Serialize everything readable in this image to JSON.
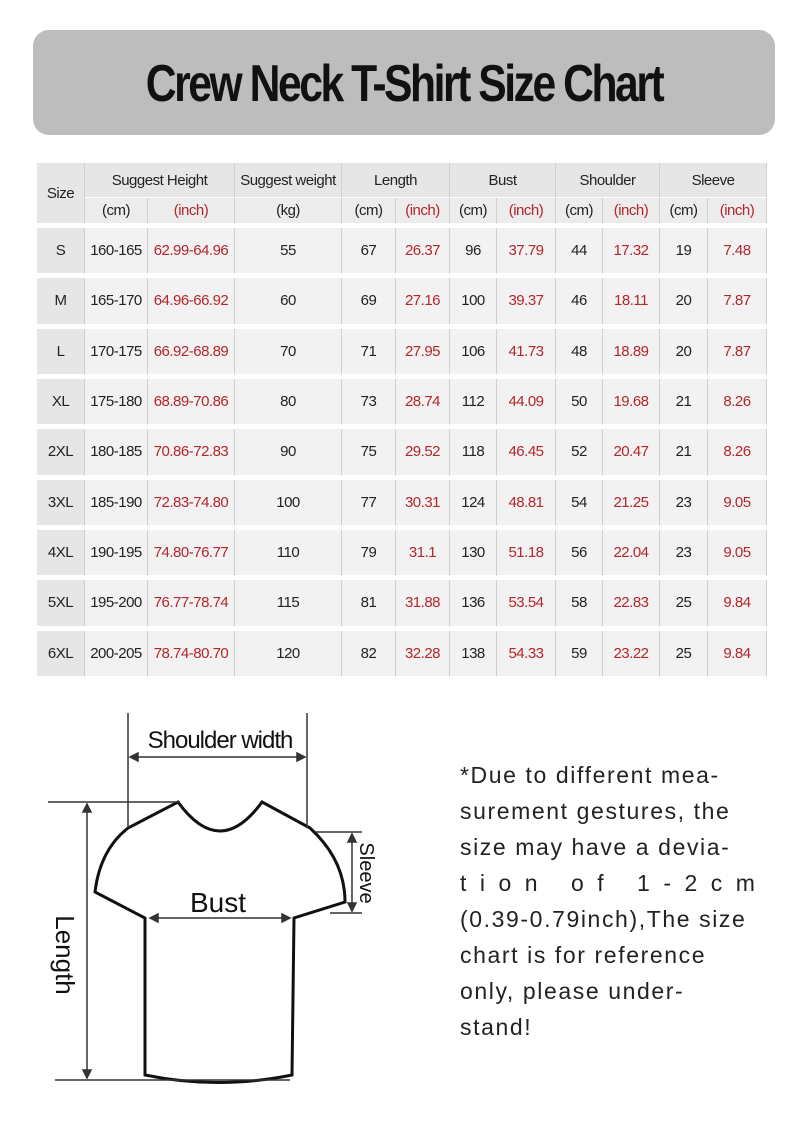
{
  "header": {
    "title": "Crew Neck T-Shirt Size Chart"
  },
  "table": {
    "headers": [
      "Size",
      "Suggest Height",
      "Suggest weight",
      "Length",
      "Bust",
      "Shoulder",
      "Sleeve"
    ],
    "subheaders": [
      "(cm)",
      "(inch)",
      "(kg)",
      "(cm)",
      "(inch)",
      "(cm)",
      "(inch)",
      "(cm)",
      "(inch)",
      "(cm)",
      "(inch)"
    ],
    "rows": [
      [
        "S",
        "160-165",
        "62.99-64.96",
        "55",
        "67",
        "26.37",
        "96",
        "37.79",
        "44",
        "17.32",
        "19",
        "7.48"
      ],
      [
        "M",
        "165-170",
        "64.96-66.92",
        "60",
        "69",
        "27.16",
        "100",
        "39.37",
        "46",
        "18.11",
        "20",
        "7.87"
      ],
      [
        "L",
        "170-175",
        "66.92-68.89",
        "70",
        "71",
        "27.95",
        "106",
        "41.73",
        "48",
        "18.89",
        "20",
        "7.87"
      ],
      [
        "XL",
        "175-180",
        "68.89-70.86",
        "80",
        "73",
        "28.74",
        "112",
        "44.09",
        "50",
        "19.68",
        "21",
        "8.26"
      ],
      [
        "2XL",
        "180-185",
        "70.86-72.83",
        "90",
        "75",
        "29.52",
        "118",
        "46.45",
        "52",
        "20.47",
        "21",
        "8.26"
      ],
      [
        "3XL",
        "185-190",
        "72.83-74.80",
        "100",
        "77",
        "30.31",
        "124",
        "48.81",
        "54",
        "21.25",
        "23",
        "9.05"
      ],
      [
        "4XL",
        "190-195",
        "74.80-76.77",
        "110",
        "79",
        "31.1",
        "130",
        "51.18",
        "56",
        "22.04",
        "23",
        "9.05"
      ],
      [
        "5XL",
        "195-200",
        "76.77-78.74",
        "115",
        "81",
        "31.88",
        "136",
        "53.54",
        "58",
        "22.83",
        "25",
        "9.84"
      ],
      [
        "6XL",
        "200-205",
        "78.74-80.70",
        "120",
        "82",
        "32.28",
        "138",
        "54.33",
        "59",
        "23.22",
        "25",
        "9.84"
      ]
    ]
  },
  "diagram": {
    "shoulder": "Shoulder width",
    "bust": "Bust",
    "length": "Length",
    "sleeve": "Sleeve"
  },
  "note": {
    "lines": [
      "*Due to different mea-",
      "surement gestures, the",
      "size may have a devia-",
      "tion of 1-2cm",
      "(0.39-0.79inch),The size",
      "chart is for reference",
      "only, please under-",
      "stand!"
    ]
  }
}
